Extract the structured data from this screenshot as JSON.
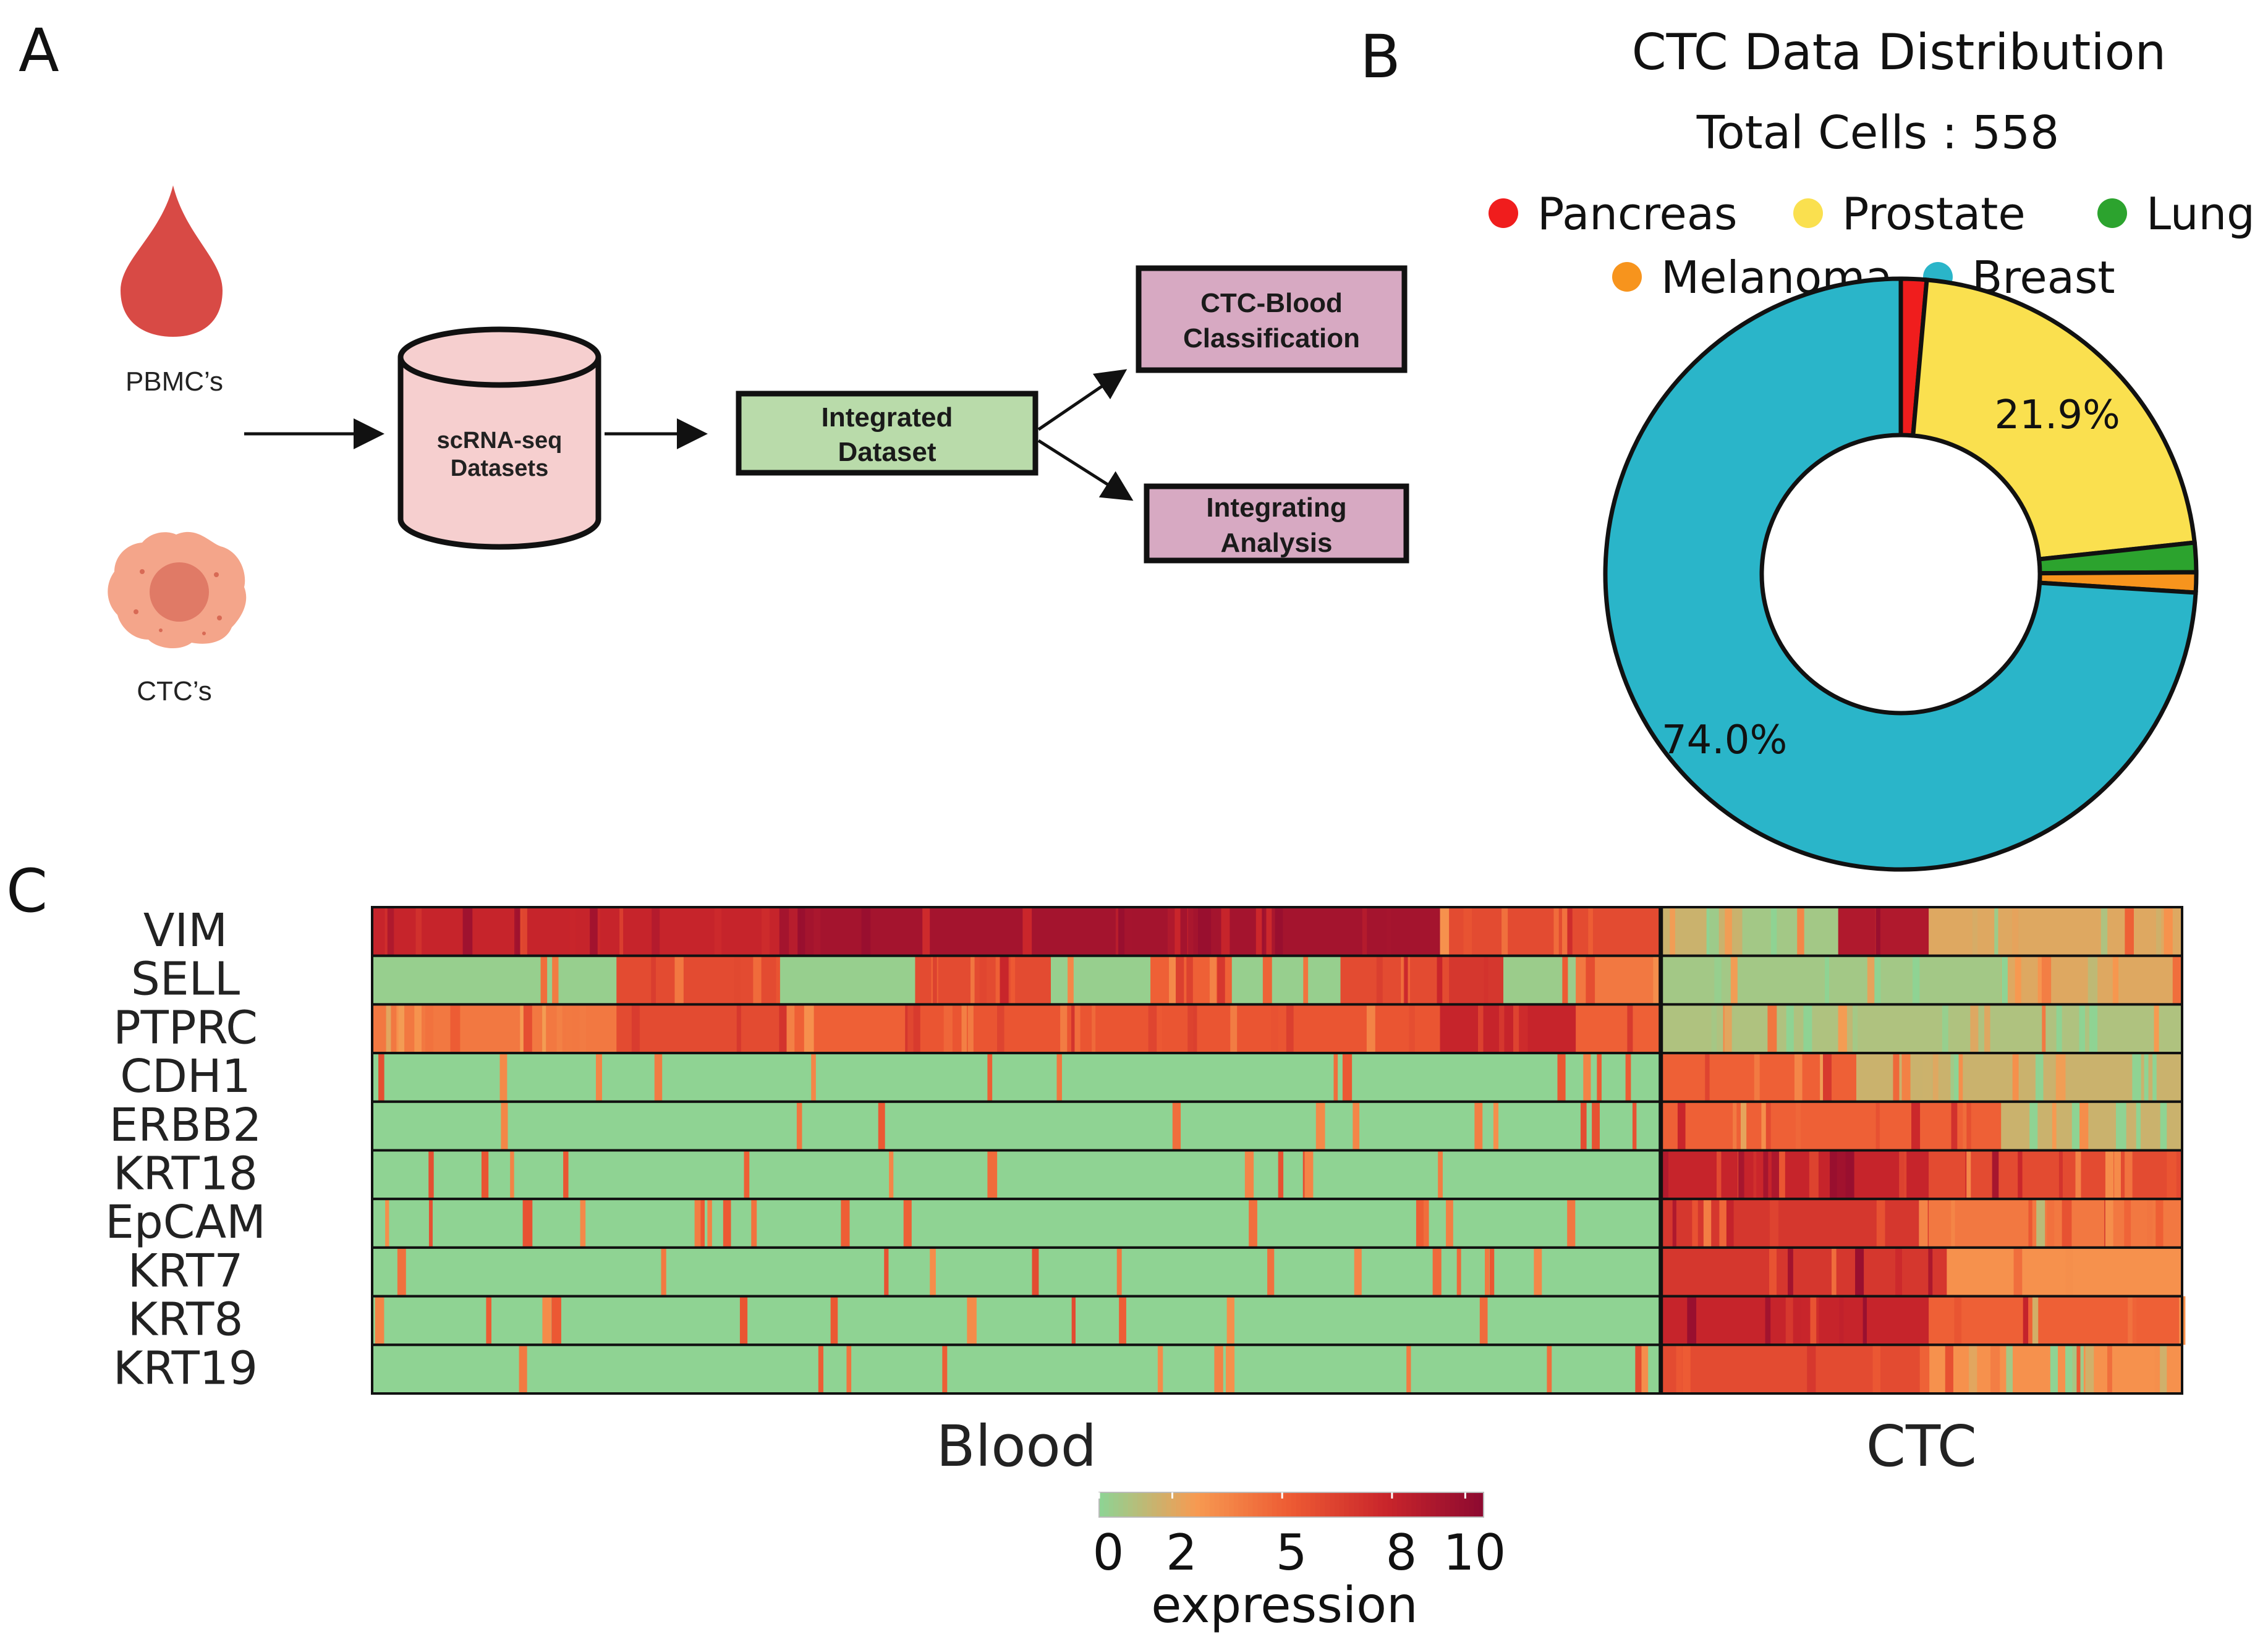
{
  "panels": {
    "a": "A",
    "b": "B",
    "c": "C"
  },
  "panel_a": {
    "pbmc_label": "PBMC’s",
    "ctc_label": "CTC’s",
    "datasets_line1": "scRNA-seq",
    "datasets_line2": "Datasets",
    "integrated_line1": "Integrated",
    "integrated_line2": "Dataset",
    "classification_line1": "CTC-Blood",
    "classification_line2": "Classification",
    "analysis_line1": "Integrating",
    "analysis_line2": "Analysis",
    "colors": {
      "drop": "#d84a45",
      "cell": "#f4a58a",
      "nucleus": "#e07a66",
      "cylinder": "#f6cfcf",
      "integrated": "#b9dbaa",
      "purple_box": "#d7a9c2"
    },
    "icons": [
      "blood-drop-icon",
      "tumor-cell-icon",
      "database-icon"
    ]
  },
  "chart_data": [
    {
      "type": "pie",
      "donut": true,
      "title": "CTC Data Distribution",
      "subtitle": "Total Cells : 558",
      "legend_position": "top",
      "slices": [
        {
          "name": "Pancreas",
          "value": 1.4,
          "color": "#f01d1d"
        },
        {
          "name": "Prostate",
          "value": 21.9,
          "color": "#fae04f",
          "label": "21.9%"
        },
        {
          "name": "Lung",
          "value": 1.6,
          "color": "#2ca32e"
        },
        {
          "name": "Melanoma",
          "value": 1.1,
          "color": "#f7941d"
        },
        {
          "name": "Breast",
          "value": 74.0,
          "color": "#2ab5c9",
          "label": "74.0%"
        }
      ]
    },
    {
      "type": "heatmap",
      "genes": [
        "VIM",
        "SELL",
        "PTPRC",
        "CDH1",
        "ERBB2",
        "KRT18",
        "EpCAM",
        "KRT7",
        "KRT8",
        "KRT19"
      ],
      "groups": [
        "Blood",
        "CTC"
      ],
      "group_fraction_blood": 0.712,
      "colorbar": {
        "title": "expression",
        "ticks": [
          "0",
          "2",
          "5",
          "8",
          "10"
        ],
        "range": [
          0,
          10.5
        ]
      },
      "colorscale": [
        "#8fd393",
        "#f79a51",
        "#ed5a33",
        "#c9252b",
        "#8e0a30"
      ],
      "segments": {
        "VIM": [
          [
            0,
            0.225,
            8
          ],
          [
            0.225,
            0.59,
            9.5
          ],
          [
            0.59,
            0.595,
            3
          ],
          [
            0.595,
            0.712,
            6
          ],
          [
            0.712,
            0.757,
            1.5
          ],
          [
            0.757,
            0.81,
            0.5
          ],
          [
            0.81,
            0.86,
            9
          ],
          [
            0.86,
            1,
            2
          ]
        ],
        "SELL": [
          [
            0,
            0.135,
            0.2
          ],
          [
            0.135,
            0.225,
            6
          ],
          [
            0.225,
            0.3,
            0.2
          ],
          [
            0.3,
            0.375,
            6
          ],
          [
            0.375,
            0.43,
            0.2
          ],
          [
            0.43,
            0.475,
            5
          ],
          [
            0.475,
            0.535,
            0.2
          ],
          [
            0.535,
            0.595,
            6
          ],
          [
            0.595,
            0.625,
            7
          ],
          [
            0.625,
            0.665,
            0.3
          ],
          [
            0.665,
            0.712,
            4
          ],
          [
            0.712,
            0.9,
            0.5
          ],
          [
            0.9,
            1,
            2
          ]
        ],
        "PTPRC": [
          [
            0,
            0.135,
            4
          ],
          [
            0.135,
            0.225,
            6
          ],
          [
            0.225,
            0.3,
            5
          ],
          [
            0.3,
            0.59,
            5.5
          ],
          [
            0.59,
            0.665,
            8
          ],
          [
            0.665,
            0.712,
            5
          ],
          [
            0.712,
            1,
            0.8
          ]
        ],
        "CDH1": [
          [
            0,
            0.712,
            0
          ],
          [
            0.712,
            0.82,
            5
          ],
          [
            0.82,
            1,
            1.5
          ]
        ],
        "ERBB2": [
          [
            0,
            0.712,
            0
          ],
          [
            0.712,
            0.9,
            5
          ],
          [
            0.9,
            1,
            1.5
          ]
        ],
        "KRT18": [
          [
            0,
            0.712,
            0
          ],
          [
            0.712,
            0.86,
            8
          ],
          [
            0.86,
            1,
            6
          ]
        ],
        "EpCAM": [
          [
            0,
            0.712,
            0
          ],
          [
            0.712,
            0.86,
            7
          ],
          [
            0.86,
            1,
            4
          ]
        ],
        "KRT7": [
          [
            0,
            0.712,
            0
          ],
          [
            0.712,
            0.87,
            7
          ],
          [
            0.87,
            1,
            3
          ]
        ],
        "KRT8": [
          [
            0,
            0.712,
            0
          ],
          [
            0.712,
            0.86,
            8
          ],
          [
            0.86,
            1,
            5
          ]
        ],
        "KRT19": [
          [
            0,
            0.712,
            0
          ],
          [
            0.712,
            0.86,
            6
          ],
          [
            0.86,
            1,
            3
          ]
        ]
      }
    }
  ]
}
